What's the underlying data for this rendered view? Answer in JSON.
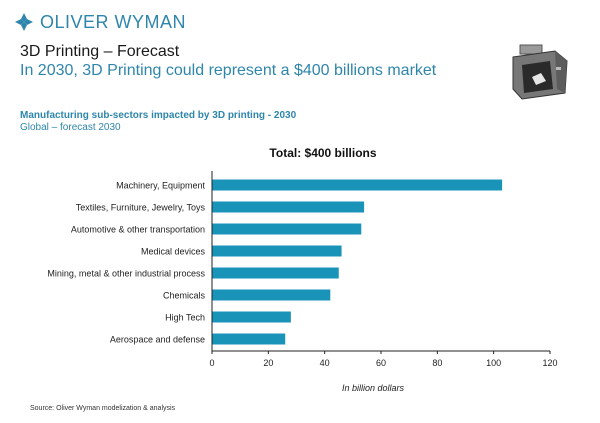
{
  "header": {
    "brand": "OLIVER WYMAN",
    "title": "3D Printing – Forecast",
    "subtitle": "In 2030, 3D Printing could represent a $400 billions market",
    "section_title": "Manufacturing sub-sectors impacted by 3D printing - 2030",
    "section_subtitle": "Global – forecast 2030"
  },
  "colors": {
    "bar": "#1a93b8",
    "brand": "#2f86ad",
    "accent": "#2e86ab"
  },
  "icons": {
    "logo": "oliver-wyman-logo-icon",
    "illustration": "3d-printer-icon"
  },
  "chart_data": {
    "type": "bar",
    "orientation": "horizontal",
    "title": "Total: $400 billions",
    "xlabel": "In billion dollars",
    "ylabel": "",
    "categories": [
      "Machinery, Equipment",
      "Textiles, Furniture, Jewelry, Toys",
      "Automotive & other transportation",
      "Medical devices",
      "Mining, metal & other industrial process",
      "Chemicals",
      "High Tech",
      "Aerospace and defense"
    ],
    "values": [
      103,
      54,
      53,
      46,
      45,
      42,
      28,
      26
    ],
    "xlim": [
      0,
      120
    ],
    "xticks": [
      0,
      20,
      40,
      60,
      80,
      100,
      120
    ],
    "grid": false,
    "legend": "none"
  },
  "footer": {
    "source": "Source: Oliver Wyman modelization & analysis"
  }
}
